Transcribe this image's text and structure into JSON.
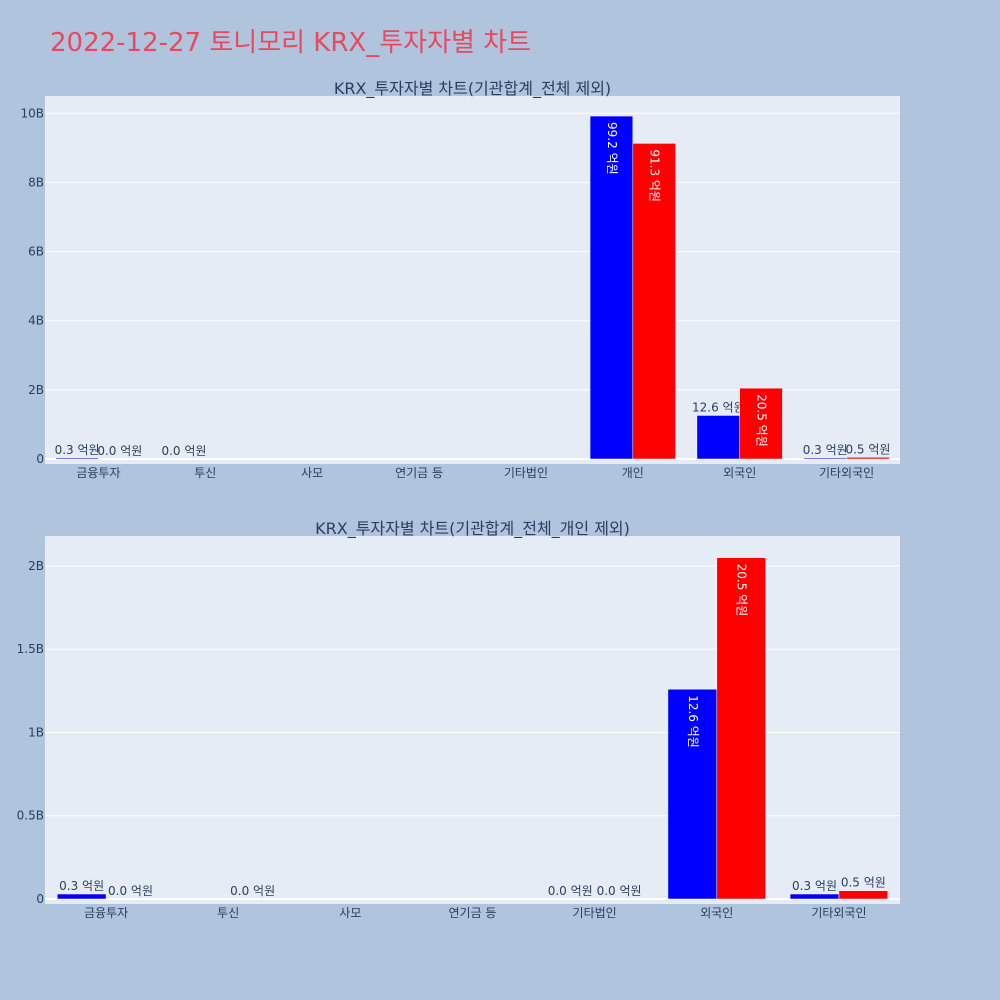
{
  "page": {
    "title": "2022-12-27 토니모리 KRX_투자자별 차트"
  },
  "colors": {
    "background": "#b0c4de",
    "plot_bg": "#e5ecf6",
    "gridline": "#ffffff",
    "title": "#e8495d",
    "series_1": "#0000ff",
    "series_2": "#ff0000"
  },
  "chart_data": [
    {
      "type": "bar",
      "title": "KRX_투자자별 차트(기관합계_전체 제외)",
      "categories": [
        "금융투자",
        "투신",
        "사모",
        "연기금 등",
        "기타법인",
        "개인",
        "외국인",
        "기타외국인"
      ],
      "ylim": [
        0,
        10500000000
      ],
      "yticks": [
        0,
        2000000000,
        4000000000,
        6000000000,
        8000000000,
        10000000000
      ],
      "ytick_labels": [
        "0",
        "2B",
        "4B",
        "6B",
        "8B",
        "10B"
      ],
      "grid": true,
      "series": [
        {
          "color": "#0000ff",
          "values": [
            30000000,
            0,
            0,
            0,
            0,
            9920000000,
            1260000000,
            30000000
          ],
          "labels": [
            "0.3 억원",
            "0.0 억원",
            "",
            "",
            "",
            "99.2 억원",
            "12.6 억원",
            "0.3 억원"
          ]
        },
        {
          "color": "#ff0000",
          "values": [
            0,
            0,
            0,
            0,
            0,
            9130000000,
            2050000000,
            50000000
          ],
          "labels": [
            "0.0 억원",
            "",
            "",
            "",
            "",
            "91.3 억원",
            "20.5 억원",
            "0.5 억원"
          ]
        }
      ]
    },
    {
      "type": "bar",
      "title": "KRX_투자자별 차트(기관합계_전체_개인 제외)",
      "categories": [
        "금융투자",
        "투신",
        "사모",
        "연기금 등",
        "기타법인",
        "외국인",
        "기타외국인"
      ],
      "ylim": [
        0,
        2180000000
      ],
      "yticks": [
        0,
        500000000,
        1000000000,
        1500000000,
        2000000000
      ],
      "ytick_labels": [
        "0",
        "0.5B",
        "1B",
        "1.5B",
        "2B"
      ],
      "grid": true,
      "series": [
        {
          "color": "#0000ff",
          "values": [
            30000000,
            0,
            0,
            0,
            0,
            1260000000,
            30000000
          ],
          "labels": [
            "0.3 억원",
            "",
            "",
            "",
            "0.0 억원",
            "12.6 억원",
            "0.3 억원"
          ]
        },
        {
          "color": "#ff0000",
          "values": [
            0,
            0,
            0,
            0,
            0,
            2050000000,
            50000000
          ],
          "labels": [
            "0.0 억원",
            "0.0 억원",
            "",
            "",
            "0.0 억원",
            "20.5 억원",
            "0.5 억원"
          ]
        }
      ]
    }
  ]
}
